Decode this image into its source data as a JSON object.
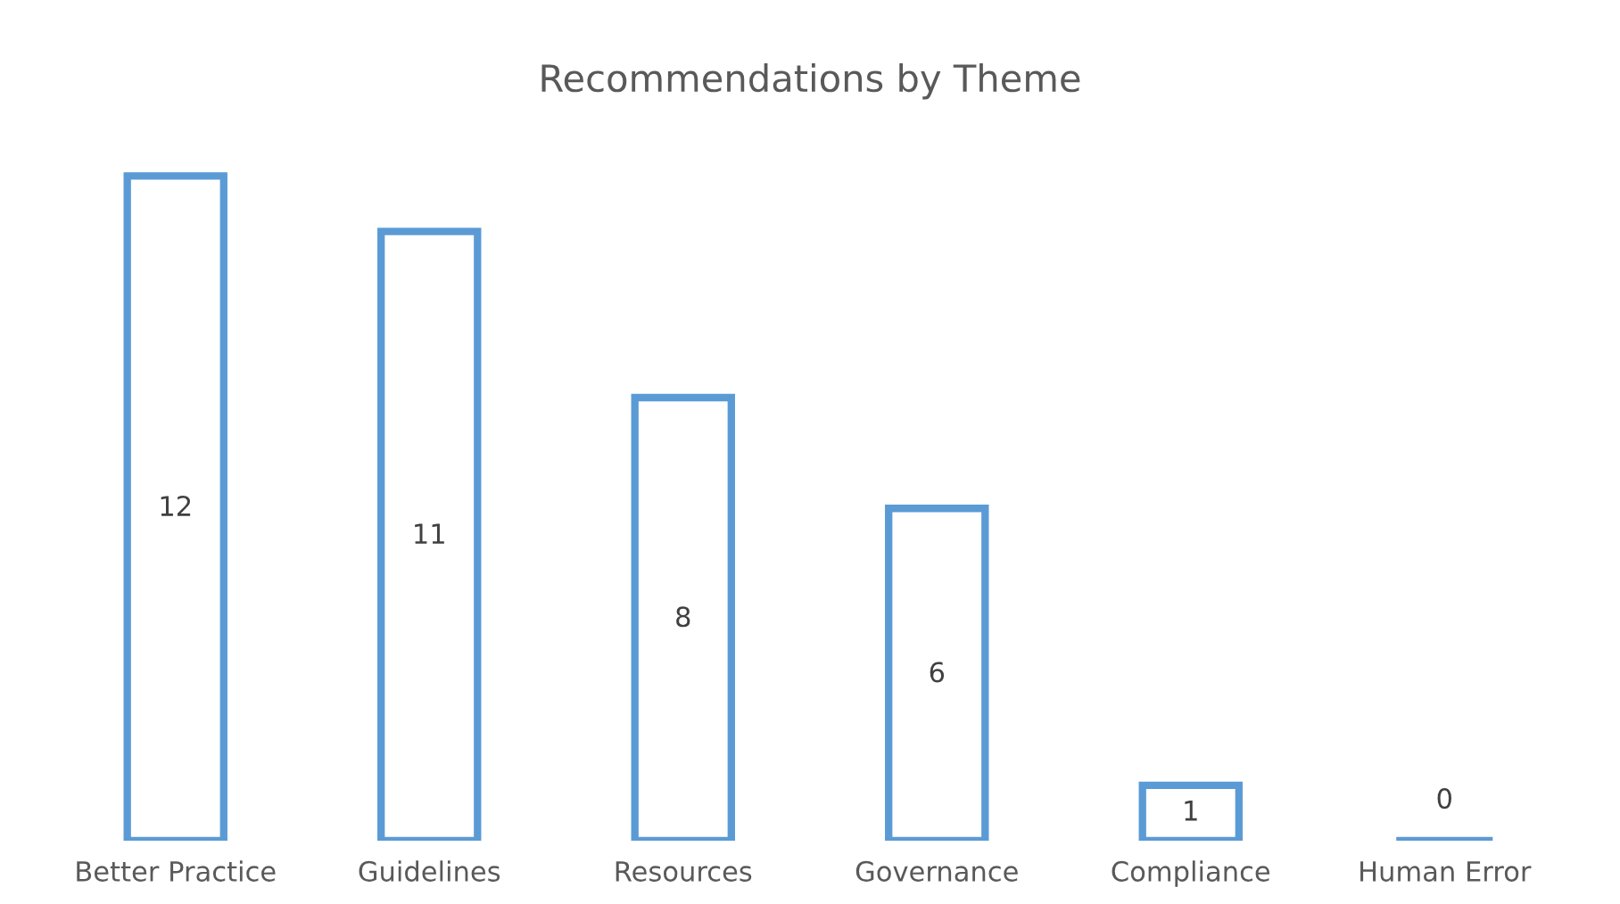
{
  "chart_data": {
    "type": "bar",
    "title": "Recommendations by Theme",
    "categories": [
      "Better Practice",
      "Guidelines",
      "Resources",
      "Governance",
      "Compliance",
      "Human Error"
    ],
    "values": [
      12,
      11,
      8,
      6,
      1,
      0
    ],
    "color": "#5b9bd5",
    "data_labels": true,
    "grid": false,
    "legend": false
  }
}
